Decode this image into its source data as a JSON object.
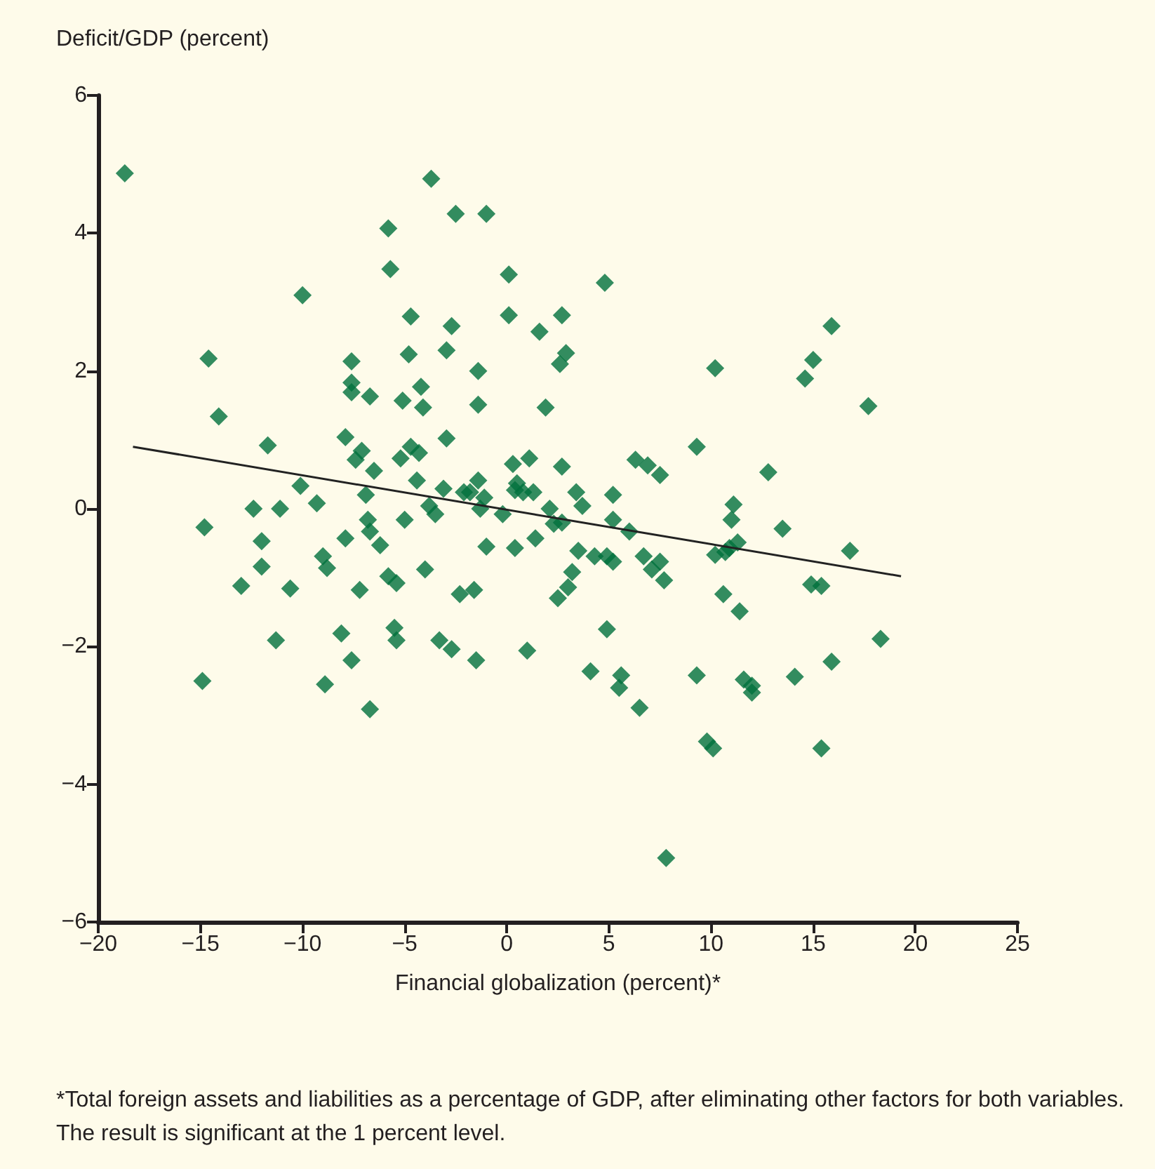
{
  "chart_data": {
    "type": "scatter",
    "xlabel": "Financial globalization (percent)*",
    "ylabel": "Deficit/GDP (percent)",
    "annotations": [
      "*Total foreign assets and liabilities as a percentage of GDP, after eliminating other factors for both variables. The result is significant at the 1 percent level."
    ],
    "xlim": [
      -20,
      25
    ],
    "ylim": [
      -6,
      6
    ],
    "xticks": [
      {
        "value": -20,
        "label": "−20"
      },
      {
        "value": -15,
        "label": "−15"
      },
      {
        "value": -10,
        "label": "−10"
      },
      {
        "value": -5,
        "label": "−5"
      },
      0,
      5,
      10,
      15,
      20,
      25
    ],
    "yticks": [
      {
        "value": -6,
        "label": "−6"
      },
      {
        "value": -4,
        "label": "−4"
      },
      {
        "value": -2,
        "label": "−2"
      },
      0,
      2,
      4,
      6
    ],
    "marker": "diamond",
    "series": [
      {
        "color": "#00703c",
        "x": [
          -18.7,
          -14.6,
          -14.1,
          -14.8,
          -14.9,
          -11.7,
          -12.4,
          -12.0,
          -13.0,
          -12.0,
          -11.1,
          -10.6,
          -11.3,
          -10.0,
          -10.1,
          -9.3,
          -9.0,
          -8.8,
          -8.9,
          -8.1,
          -7.6,
          -7.9,
          -7.4,
          -7.1,
          -7.9,
          -7.2,
          -7.6,
          -7.6,
          -7.6,
          -6.7,
          -6.9,
          -6.8,
          -6.7,
          -6.7,
          -6.5,
          -6.2,
          -5.8,
          -5.4,
          -5.5,
          -5.4,
          -5.8,
          -5.7,
          -5.2,
          -4.7,
          -4.8,
          -5.1,
          -4.2,
          -4.1,
          -4.7,
          -4.3,
          -5.0,
          -4.4,
          -3.8,
          -3.5,
          -4.0,
          -3.7,
          -2.95,
          -3.1,
          -3.3,
          -2.5,
          -2.7,
          -2.95,
          -2.7,
          -2.3,
          -1.8,
          -2.1,
          -1.6,
          -1.5,
          -1.0,
          -1.4,
          -1.4,
          -1.4,
          -1.1,
          -1.3,
          -1.0,
          -0.2,
          0.3,
          0.1,
          0.1,
          0.5,
          0.4,
          0.8,
          1.0,
          1.1,
          1.6,
          1.3,
          1.4,
          0.4,
          1.9,
          2.1,
          2.3,
          2.7,
          2.7,
          2.7,
          2.6,
          2.9,
          2.5,
          3.0,
          3.2,
          3.5,
          3.4,
          3.7,
          4.3,
          4.8,
          4.1,
          4.9,
          5.2,
          4.9,
          5.2,
          5.6,
          5.5,
          5.2,
          6.0,
          6.3,
          6.9,
          7.5,
          6.5,
          6.7,
          7.1,
          7.5,
          7.7,
          7.8,
          9.3,
          9.3,
          9.8,
          10.1,
          10.2,
          10.2,
          10.7,
          10.6,
          11.1,
          11.0,
          10.9,
          11.3,
          11.4,
          11.6,
          12.0,
          12.0,
          12.8,
          13.5,
          14.1,
          14.6,
          15.0,
          14.9,
          15.4,
          15.4,
          15.9,
          15.9,
          16.8,
          17.7,
          18.3
        ],
        "values": [
          4.87,
          2.18,
          1.34,
          -0.27,
          -2.5,
          0.92,
          0.0,
          -0.47,
          -1.12,
          -0.84,
          0.0,
          -1.16,
          -1.91,
          3.1,
          0.33,
          0.08,
          -0.69,
          -0.86,
          -2.55,
          -1.81,
          -2.2,
          1.04,
          0.71,
          0.84,
          -0.43,
          -1.18,
          2.14,
          1.83,
          1.69,
          1.63,
          0.2,
          -0.16,
          -0.33,
          -2.91,
          0.55,
          -0.53,
          -0.98,
          -1.08,
          -1.73,
          -1.91,
          4.07,
          3.48,
          0.73,
          2.79,
          2.24,
          1.57,
          1.77,
          1.47,
          0.9,
          0.81,
          -0.16,
          0.41,
          0.04,
          -0.08,
          -0.88,
          4.79,
          1.02,
          0.29,
          -1.91,
          4.28,
          2.65,
          2.3,
          -2.04,
          -1.24,
          0.24,
          0.24,
          -1.18,
          -2.2,
          4.28,
          2.0,
          1.51,
          0.41,
          0.16,
          0.0,
          -0.55,
          -0.08,
          0.65,
          3.4,
          2.81,
          0.37,
          0.27,
          0.24,
          -2.06,
          0.73,
          2.57,
          0.24,
          -0.43,
          -0.57,
          1.47,
          0.0,
          -0.22,
          -0.2,
          0.61,
          2.81,
          2.1,
          2.26,
          -1.3,
          -1.14,
          -0.92,
          -0.61,
          0.24,
          0.04,
          -0.69,
          3.28,
          -2.36,
          -1.75,
          0.2,
          -0.69,
          -0.77,
          -2.42,
          -2.6,
          -0.16,
          -0.33,
          0.71,
          0.63,
          0.49,
          -2.89,
          -0.69,
          -0.88,
          -0.77,
          -1.04,
          -5.07,
          0.9,
          -2.42,
          -3.38,
          -3.48,
          2.04,
          -0.67,
          -0.63,
          -1.24,
          0.06,
          -0.16,
          -0.57,
          -0.49,
          -1.49,
          -2.48,
          -2.67,
          -2.57,
          0.53,
          -0.29,
          -2.44,
          1.89,
          2.16,
          -1.1,
          -1.12,
          -3.48,
          2.65,
          -2.22,
          -0.61,
          1.49,
          -1.89
        ]
      },
      {
        "type": "line",
        "color": "#222222",
        "marker": "none",
        "x": [
          -18.3,
          19.3
        ],
        "values": [
          0.9,
          -0.98
        ]
      }
    ]
  }
}
